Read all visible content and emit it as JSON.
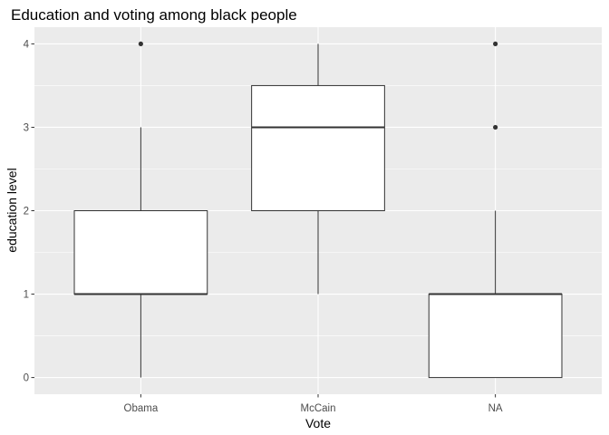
{
  "chart_data": {
    "type": "boxplot",
    "title": "Education and voting among black people",
    "xlabel": "Vote",
    "ylabel": "education level",
    "categories": [
      "Obama",
      "McCain",
      "NA"
    ],
    "ylim": [
      -0.2,
      4.2
    ],
    "y_ticks": [
      0,
      1,
      2,
      3,
      4
    ],
    "grid": true,
    "boxes": [
      {
        "category": "Obama",
        "min": 0,
        "q1": 1,
        "median": 1,
        "q3": 2,
        "max": 3,
        "outliers": [
          4
        ]
      },
      {
        "category": "McCain",
        "min": 1,
        "q1": 2,
        "median": 3,
        "q3": 3.5,
        "max": 4,
        "outliers": []
      },
      {
        "category": "NA",
        "min": 0,
        "q1": 0,
        "median": 1,
        "q3": 1,
        "max": 2,
        "outliers": [
          3,
          4
        ]
      }
    ],
    "colors": {
      "panel_background": "#ebebeb",
      "grid_major": "#ffffff",
      "box_fill": "#ffffff",
      "box_stroke": "#333333",
      "outlier": "#333333",
      "tick_label": "#4d4d4d",
      "tick_mark": "#333333"
    }
  }
}
